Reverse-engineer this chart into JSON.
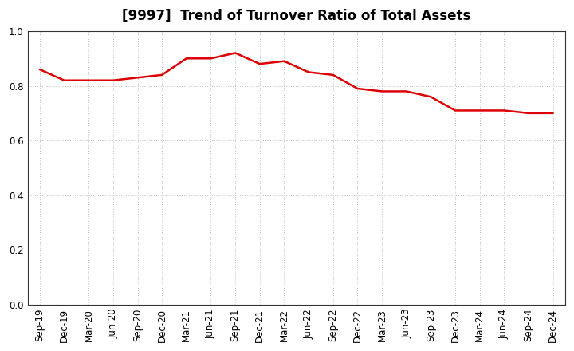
{
  "title": "[9997]  Trend of Turnover Ratio of Total Assets",
  "x_labels": [
    "Sep-19",
    "Dec-19",
    "Mar-20",
    "Jun-20",
    "Sep-20",
    "Dec-20",
    "Mar-21",
    "Jun-21",
    "Sep-21",
    "Dec-21",
    "Mar-22",
    "Jun-22",
    "Sep-22",
    "Dec-22",
    "Mar-23",
    "Jun-23",
    "Sep-23",
    "Dec-23",
    "Mar-24",
    "Jun-24",
    "Sep-24",
    "Dec-24"
  ],
  "y_values": [
    0.86,
    0.82,
    0.82,
    0.82,
    0.83,
    0.84,
    0.9,
    0.9,
    0.92,
    0.88,
    0.89,
    0.85,
    0.84,
    0.79,
    0.78,
    0.78,
    0.76,
    0.71,
    0.71,
    0.71,
    0.7,
    0.7
  ],
  "line_color": "#dd0000",
  "line_width": 1.8,
  "ylim": [
    0.0,
    1.0
  ],
  "yticks": [
    0.0,
    0.2,
    0.4,
    0.6,
    0.8,
    1.0
  ],
  "background_color": "#ffffff",
  "grid_color": "#bbbbbb",
  "title_fontsize": 12,
  "tick_fontsize": 8.5,
  "spine_color": "#333333"
}
